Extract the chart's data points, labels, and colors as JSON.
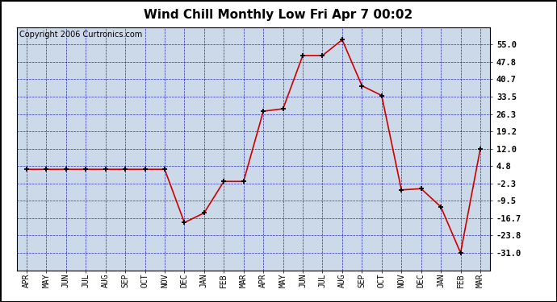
{
  "title": "Wind Chill Monthly Low Fri Apr 7 00:02",
  "copyright": "Copyright 2006 Curtronics.com",
  "x_labels": [
    "APR",
    "MAY",
    "JUN",
    "JUL",
    "AUG",
    "SEP",
    "OCT",
    "NOV",
    "DEC",
    "JAN",
    "FEB",
    "MAR",
    "APR",
    "MAY",
    "JUN",
    "JUL",
    "AUG",
    "SEP",
    "OCT",
    "NOV",
    "DEC",
    "JAN",
    "FEB",
    "MAR"
  ],
  "y_values": [
    3.5,
    3.5,
    3.5,
    3.5,
    3.5,
    3.5,
    3.5,
    3.5,
    -18.5,
    -14.5,
    -1.5,
    -1.5,
    27.5,
    28.5,
    50.5,
    50.5,
    57.0,
    38.0,
    34.0,
    -5.0,
    -4.5,
    -12.0,
    -31.0,
    12.0
  ],
  "ylim_min": -38.2,
  "ylim_max": 62.2,
  "yticks": [
    -31.0,
    -23.8,
    -16.7,
    -9.5,
    -2.3,
    4.8,
    12.0,
    19.2,
    26.3,
    33.5,
    40.7,
    47.8,
    55.0
  ],
  "line_color": "#cc0000",
  "marker_color": "#cc0000",
  "bg_color": "#ffffff",
  "plot_bg_color": "#ccd9e8",
  "grid_color": "#0000bb",
  "title_fontsize": 11,
  "copyright_fontsize": 7
}
